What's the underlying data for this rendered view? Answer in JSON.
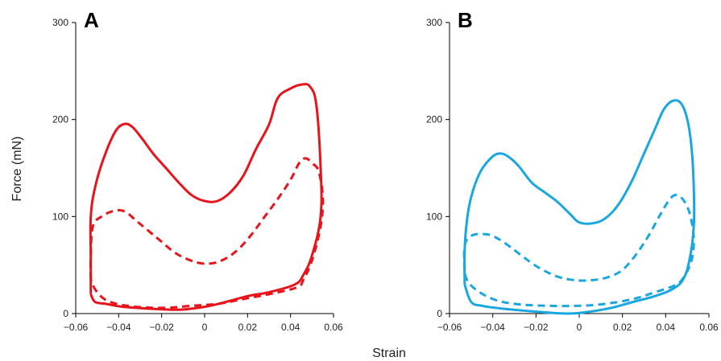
{
  "chart_data": {
    "type": "line",
    "ylabel": "Force (mN)",
    "xlabel": "Strain",
    "xlim": [
      -0.06,
      0.06
    ],
    "ylim": [
      0,
      300
    ],
    "xticks": [
      "−0.06",
      "−0.04",
      "−0.02",
      "0",
      "0.02",
      "0.04",
      "0.06"
    ],
    "xtick_values": [
      -0.06,
      -0.04,
      -0.02,
      0,
      0.02,
      0.04,
      0.06
    ],
    "yticks": [
      "0",
      "100",
      "200",
      "300"
    ],
    "ytick_values": [
      0,
      100,
      200,
      300
    ],
    "grid": false,
    "panels": [
      {
        "label": "A",
        "color": "#e8141b",
        "series": [
          {
            "style": "solid",
            "points": [
              [
                -0.053,
                20
              ],
              [
                -0.053,
                60
              ],
              [
                -0.053,
                100
              ],
              [
                -0.051,
                130
              ],
              [
                -0.047,
                160
              ],
              [
                -0.042,
                186
              ],
              [
                -0.038,
                195
              ],
              [
                -0.034,
                193
              ],
              [
                -0.029,
                180
              ],
              [
                -0.024,
                165
              ],
              [
                -0.018,
                150
              ],
              [
                -0.012,
                135
              ],
              [
                -0.006,
                122
              ],
              [
                0.0,
                116
              ],
              [
                0.006,
                116
              ],
              [
                0.012,
                125
              ],
              [
                0.018,
                142
              ],
              [
                0.024,
                170
              ],
              [
                0.03,
                195
              ],
              [
                0.034,
                222
              ],
              [
                0.04,
                232
              ],
              [
                0.045,
                236
              ],
              [
                0.049,
                234
              ],
              [
                0.052,
                215
              ],
              [
                0.054,
                150
              ],
              [
                0.054,
                100
              ],
              [
                0.05,
                60
              ],
              [
                0.046,
                40
              ],
              [
                0.042,
                30
              ],
              [
                0.03,
                22
              ],
              [
                0.02,
                18
              ],
              [
                0.01,
                12
              ],
              [
                0.0,
                7
              ],
              [
                -0.012,
                4
              ],
              [
                -0.025,
                5
              ],
              [
                -0.038,
                7
              ],
              [
                -0.046,
                10
              ],
              [
                -0.051,
                12
              ],
              [
                -0.053,
                20
              ]
            ]
          },
          {
            "style": "dashed",
            "points": [
              [
                -0.053,
                35
              ],
              [
                -0.053,
                60
              ],
              [
                -0.052,
                90
              ],
              [
                -0.048,
                100
              ],
              [
                -0.042,
                106
              ],
              [
                -0.037,
                105
              ],
              [
                -0.032,
                96
              ],
              [
                -0.026,
                85
              ],
              [
                -0.02,
                74
              ],
              [
                -0.014,
                63
              ],
              [
                -0.008,
                56
              ],
              [
                -0.002,
                52
              ],
              [
                0.004,
                52
              ],
              [
                0.01,
                57
              ],
              [
                0.016,
                67
              ],
              [
                0.022,
                82
              ],
              [
                0.028,
                100
              ],
              [
                0.034,
                118
              ],
              [
                0.04,
                138
              ],
              [
                0.044,
                155
              ],
              [
                0.047,
                160
              ],
              [
                0.05,
                155
              ],
              [
                0.053,
                147
              ],
              [
                0.055,
                120
              ],
              [
                0.054,
                90
              ],
              [
                0.05,
                55
              ],
              [
                0.046,
                35
              ],
              [
                0.043,
                27
              ],
              [
                0.03,
                20
              ],
              [
                0.018,
                15
              ],
              [
                0.006,
                10
              ],
              [
                -0.006,
                8
              ],
              [
                -0.018,
                6
              ],
              [
                -0.032,
                7
              ],
              [
                -0.044,
                12
              ],
              [
                -0.05,
                22
              ],
              [
                -0.053,
                35
              ]
            ]
          }
        ]
      },
      {
        "label": "B",
        "color": "#1aa7e0",
        "series": [
          {
            "style": "solid",
            "points": [
              [
                -0.053,
                30
              ],
              [
                -0.053,
                65
              ],
              [
                -0.052,
                95
              ],
              [
                -0.05,
                120
              ],
              [
                -0.046,
                145
              ],
              [
                -0.041,
                160
              ],
              [
                -0.037,
                165
              ],
              [
                -0.033,
                162
              ],
              [
                -0.028,
                152
              ],
              [
                -0.022,
                135
              ],
              [
                -0.016,
                125
              ],
              [
                -0.01,
                115
              ],
              [
                -0.004,
                102
              ],
              [
                0.0,
                94
              ],
              [
                0.006,
                93
              ],
              [
                0.012,
                98
              ],
              [
                0.018,
                112
              ],
              [
                0.024,
                135
              ],
              [
                0.03,
                165
              ],
              [
                0.035,
                190
              ],
              [
                0.039,
                210
              ],
              [
                0.043,
                219
              ],
              [
                0.047,
                217
              ],
              [
                0.05,
                200
              ],
              [
                0.052,
                170
              ],
              [
                0.053,
                130
              ],
              [
                0.053,
                90
              ],
              [
                0.051,
                55
              ],
              [
                0.048,
                35
              ],
              [
                0.043,
                25
              ],
              [
                0.035,
                18
              ],
              [
                0.025,
                12
              ],
              [
                0.015,
                6
              ],
              [
                0.005,
                2
              ],
              [
                -0.005,
                0
              ],
              [
                -0.02,
                2
              ],
              [
                -0.035,
                5
              ],
              [
                -0.045,
                8
              ],
              [
                -0.05,
                12
              ],
              [
                -0.053,
                30
              ]
            ]
          },
          {
            "style": "dashed",
            "points": [
              [
                -0.053,
                45
              ],
              [
                -0.053,
                70
              ],
              [
                -0.05,
                80
              ],
              [
                -0.045,
                82
              ],
              [
                -0.04,
                80
              ],
              [
                -0.034,
                72
              ],
              [
                -0.028,
                62
              ],
              [
                -0.022,
                52
              ],
              [
                -0.016,
                44
              ],
              [
                -0.01,
                38
              ],
              [
                -0.004,
                35
              ],
              [
                0.002,
                34
              ],
              [
                0.008,
                35
              ],
              [
                0.014,
                38
              ],
              [
                0.02,
                45
              ],
              [
                0.026,
                60
              ],
              [
                0.032,
                80
              ],
              [
                0.037,
                100
              ],
              [
                0.041,
                115
              ],
              [
                0.044,
                122
              ],
              [
                0.047,
                120
              ],
              [
                0.05,
                110
              ],
              [
                0.052,
                95
              ],
              [
                0.053,
                75
              ],
              [
                0.052,
                55
              ],
              [
                0.049,
                40
              ],
              [
                0.045,
                30
              ],
              [
                0.035,
                22
              ],
              [
                0.025,
                15
              ],
              [
                0.012,
                10
              ],
              [
                0.0,
                8
              ],
              [
                -0.015,
                8
              ],
              [
                -0.03,
                10
              ],
              [
                -0.04,
                15
              ],
              [
                -0.048,
                25
              ],
              [
                -0.052,
                35
              ],
              [
                -0.053,
                45
              ]
            ]
          }
        ]
      }
    ]
  }
}
